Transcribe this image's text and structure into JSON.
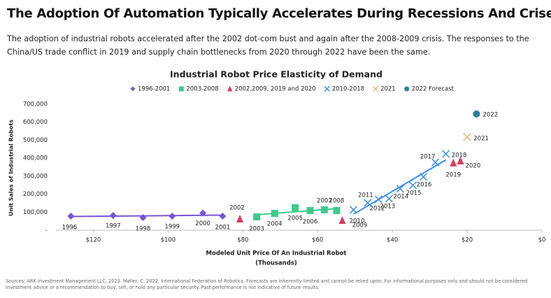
{
  "header": {
    "title": "The Adoption Of Automation Typically Accelerates During Recessions And Crises",
    "subtitle": "The adoption of industrial robots accelerated after the 2002 dot-com bust and again after the 2008-2009 crisis. The responses to the China/US trade conflict in 2019 and supply chain bottlenecks from 2020 through 2022 have been the same."
  },
  "chart_data": {
    "type": "scatter",
    "title": "Industrial Robot Price Elasticity of Demand",
    "xlabel": "Modeled Unit Price Of An Industrial Robot",
    "xlabel_unit": "(Thousands)",
    "ylabel": "Unit Sales of Industrial Robots",
    "xlim": [
      130,
      0
    ],
    "ylim": [
      0,
      700000
    ],
    "xticks": [
      {
        "value": 120,
        "label": "$120"
      },
      {
        "value": 100,
        "label": "$100"
      },
      {
        "value": 80,
        "label": "$80"
      },
      {
        "value": 60,
        "label": "$60"
      },
      {
        "value": 40,
        "label": "$40"
      },
      {
        "value": 20,
        "label": "$20"
      },
      {
        "value": 0,
        "label": "$0"
      }
    ],
    "yticks": [
      {
        "value": 0,
        "label": "-"
      },
      {
        "value": 100000,
        "label": "100,000"
      },
      {
        "value": 200000,
        "label": "200,000"
      },
      {
        "value": 300000,
        "label": "300,000"
      },
      {
        "value": 400000,
        "label": "400,000"
      },
      {
        "value": 500000,
        "label": "500,000"
      },
      {
        "value": 600000,
        "label": "600,000"
      },
      {
        "value": 700000,
        "label": "700,000"
      }
    ],
    "legend": "top",
    "series": [
      {
        "name": "1996-2001",
        "color": "#7456d6",
        "marker": "diamond",
        "trendline": true,
        "labels": [
          "1996",
          "1997",
          "1998",
          "1999",
          "2000",
          "2001"
        ],
        "x": [
          126,
          114.7,
          106.7,
          98.9,
          90.7,
          85.4
        ],
        "values": [
          78000,
          81000,
          70000,
          78000,
          95000,
          78000
        ]
      },
      {
        "name": "2003-2008",
        "color": "#3ccb8c",
        "marker": "square",
        "trendline": true,
        "labels": [
          "2003",
          "2004",
          "2005",
          "2006",
          "2007",
          "2008"
        ],
        "x": [
          76.3,
          71.5,
          66,
          62,
          58.2,
          54.9
        ],
        "values": [
          74000,
          93000,
          125000,
          109000,
          113000,
          109000
        ]
      },
      {
        "name": "2002,2009, 2019 and 2020",
        "color": "#d93a60",
        "marker": "triangle",
        "trendline": false,
        "labels": [
          "2002",
          "2009",
          "2019",
          "2020"
        ],
        "x": [
          80.8,
          53.4,
          23.7,
          21.8
        ],
        "values": [
          62000,
          54000,
          374000,
          385000
        ]
      },
      {
        "name": "2010-2018",
        "color": "#3a8ee6",
        "marker": "x",
        "trendline": true,
        "labels": [
          "2010",
          "2011",
          "2012",
          "2013",
          "2014",
          "2015",
          "2016",
          "2017",
          "2018"
        ],
        "x": [
          50.4,
          46.6,
          43.7,
          40.9,
          37.9,
          34.5,
          31.7,
          28.5,
          25.7
        ],
        "values": [
          113000,
          152000,
          171000,
          175000,
          230000,
          249000,
          296000,
          377000,
          424000
        ]
      },
      {
        "name": "2021",
        "color": "#f4b57a",
        "marker": "x",
        "trendline": false,
        "labels": [
          "2021"
        ],
        "x": [
          20
        ],
        "values": [
          518000
        ]
      },
      {
        "name": "2022 Forecast",
        "color": "#2b7f9c",
        "marker": "circle",
        "trendline": false,
        "labels": [
          "2022"
        ],
        "x": [
          17.5
        ],
        "values": [
          646000
        ]
      }
    ]
  },
  "footer": {
    "sources": "Sources: ARK Investment Management LLC, 2023. Møller, C. 2022. International Federation of Robotics. Forecasts are inherently limited and cannot be relied upon. For informational purposes only and should not be considered investment advice or a recommendation to buy, sell, or hold any particular security. Past performance is not indicative of future results."
  }
}
